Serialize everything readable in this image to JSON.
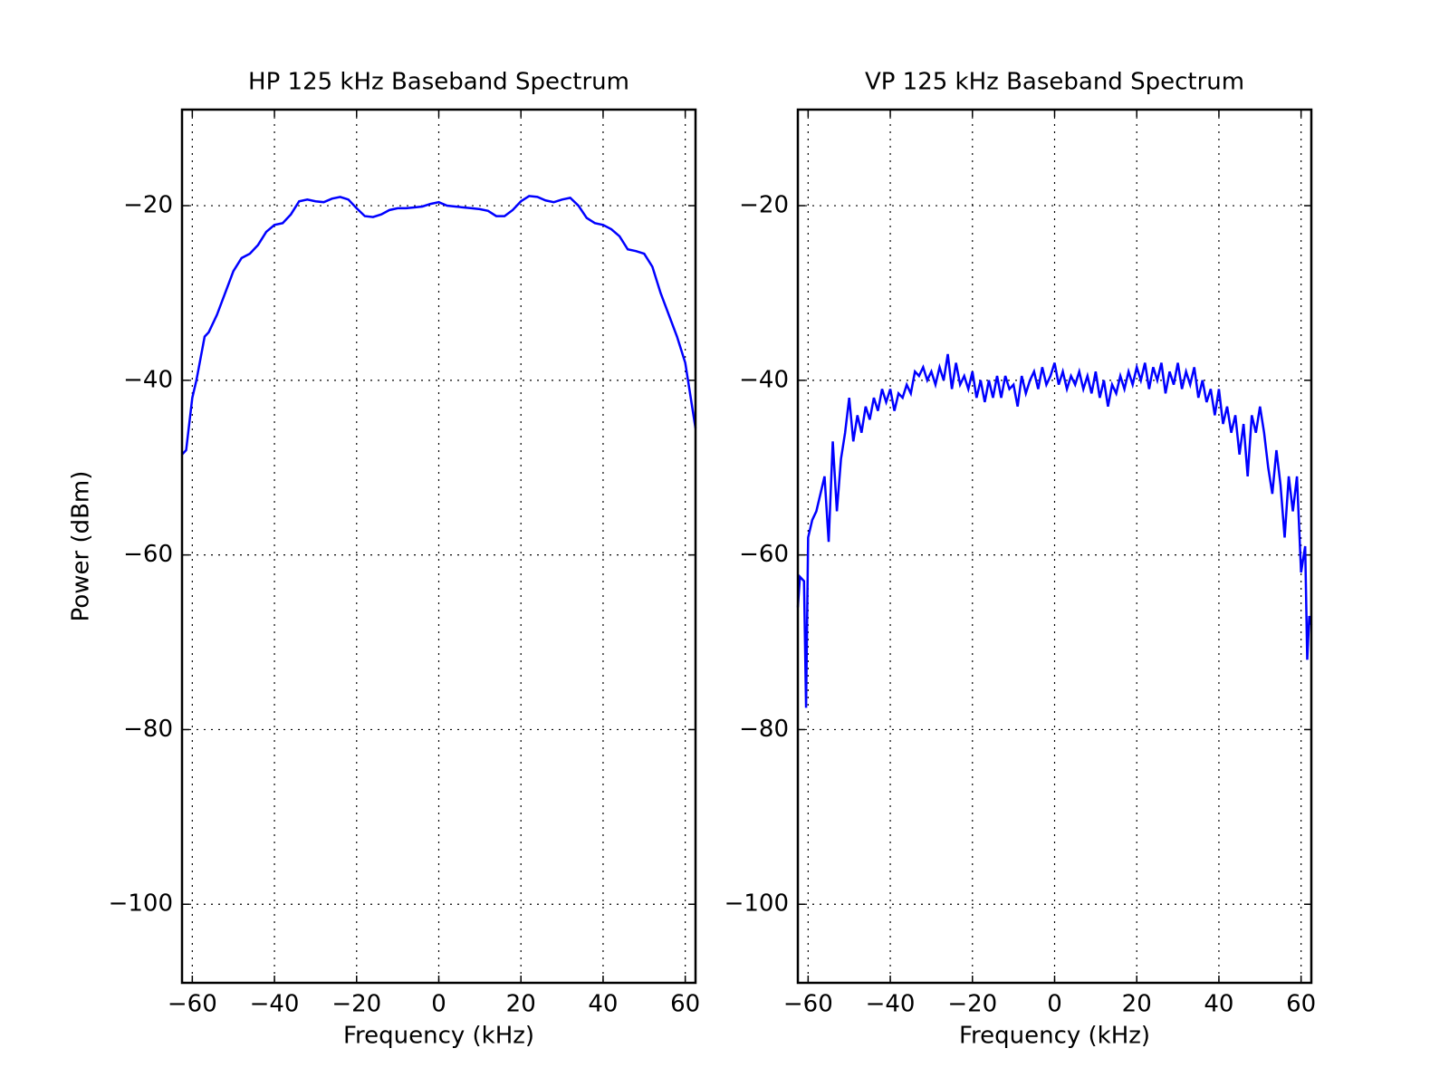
{
  "chart_data": [
    {
      "type": "line",
      "title": "HP 125 kHz Baseband Spectrum",
      "xlabel": "Frequency (kHz)",
      "ylabel": "Power (dBm)",
      "x": [
        -62.5,
        -61.5,
        -60,
        -59,
        -57,
        -56,
        -54,
        -52,
        -50,
        -48,
        -46,
        -44,
        -42,
        -40,
        -38,
        -36,
        -34,
        -32,
        -30,
        -28,
        -26,
        -24,
        -22,
        -20,
        -18,
        -16,
        -14,
        -12,
        -10,
        -8,
        -6,
        -4,
        -2,
        0,
        2,
        4,
        6,
        8,
        10,
        12,
        14,
        16,
        18,
        20,
        22,
        24,
        26,
        28,
        30,
        32,
        34,
        36,
        38,
        40,
        42,
        44,
        46,
        48,
        50,
        52,
        54,
        56,
        58,
        60,
        61,
        62.5
      ],
      "series": [
        {
          "color": "#0000ff",
          "values": [
            -48.5,
            -48,
            -42,
            -40,
            -35,
            -34.5,
            -32.5,
            -30,
            -27.5,
            -26,
            -25.5,
            -24.5,
            -23,
            -22.2,
            -22,
            -21,
            -19.5,
            -19.3,
            -19.5,
            -19.6,
            -19.2,
            -19,
            -19.3,
            -20.3,
            -21.2,
            -21.3,
            -21,
            -20.5,
            -20.3,
            -20.3,
            -20.2,
            -20.1,
            -19.8,
            -19.6,
            -20,
            -20.1,
            -20.2,
            -20.3,
            -20.4,
            -20.6,
            -21.2,
            -21.2,
            -20.5,
            -19.5,
            -18.9,
            -19,
            -19.4,
            -19.6,
            -19.3,
            -19.1,
            -20,
            -21.4,
            -22,
            -22.2,
            -22.7,
            -23.5,
            -25,
            -25.2,
            -25.5,
            -27,
            -30,
            -32.5,
            -35,
            -38,
            -41,
            -45.5
          ]
        }
      ],
      "xlim": [
        -62.5,
        62.5
      ],
      "ylim": [
        -109,
        -9
      ],
      "xticks": [
        {
          "value": -60,
          "label": "−60"
        },
        {
          "value": -40,
          "label": "−40"
        },
        {
          "value": -20,
          "label": "−20"
        },
        0,
        20,
        40,
        60
      ],
      "yticks": [
        {
          "value": -100,
          "label": "−100"
        },
        {
          "value": -80,
          "label": "−80"
        },
        {
          "value": -60,
          "label": "−60"
        },
        {
          "value": -40,
          "label": "−40"
        },
        {
          "value": -20,
          "label": "−20"
        }
      ],
      "grid": true
    },
    {
      "type": "line",
      "title": "VP 125 kHz Baseband Spectrum",
      "xlabel": "Frequency (kHz)",
      "x": [
        -62.5,
        -62,
        -61,
        -60.5,
        -60,
        -59,
        -58,
        -57,
        -56,
        -55,
        -54,
        -53,
        -52,
        -51,
        -50,
        -49,
        -48,
        -47,
        -46,
        -45,
        -44,
        -43,
        -42,
        -41,
        -40,
        -39,
        -38,
        -37,
        -36,
        -35,
        -34,
        -33,
        -32,
        -31,
        -30,
        -29,
        -28,
        -27,
        -26,
        -25,
        -24,
        -23,
        -22,
        -21,
        -20,
        -19,
        -18,
        -17,
        -16,
        -15,
        -14,
        -13,
        -12,
        -11,
        -10,
        -9,
        -8,
        -7,
        -6,
        -5,
        -4,
        -3,
        -2,
        -1,
        0,
        1,
        2,
        3,
        4,
        5,
        6,
        7,
        8,
        9,
        10,
        11,
        12,
        13,
        14,
        15,
        16,
        17,
        18,
        19,
        20,
        21,
        22,
        23,
        24,
        25,
        26,
        27,
        28,
        29,
        30,
        31,
        32,
        33,
        34,
        35,
        36,
        37,
        38,
        39,
        40,
        41,
        42,
        43,
        44,
        45,
        46,
        47,
        48,
        49,
        50,
        51,
        52,
        53,
        54,
        55,
        56,
        57,
        58,
        59,
        60,
        61,
        61.5,
        62,
        62.5
      ],
      "series": [
        {
          "color": "#0000ff",
          "values": [
            -66,
            -62.5,
            -63,
            -77.5,
            -58,
            -56,
            -55,
            -53,
            -51,
            -58.5,
            -47,
            -55,
            -49,
            -46,
            -42,
            -47,
            -44,
            -46,
            -43,
            -44.5,
            -42,
            -43.5,
            -41,
            -42.5,
            -41,
            -43.5,
            -41.5,
            -42,
            -40.5,
            -41.5,
            -39,
            -39.5,
            -38.5,
            -40,
            -39,
            -40.5,
            -38.5,
            -40,
            -37,
            -41,
            -38,
            -40.5,
            -39.5,
            -41,
            -39,
            -42,
            -40,
            -42.5,
            -40,
            -42,
            -39.5,
            -42,
            -39.5,
            -41,
            -40.5,
            -43,
            -39.5,
            -41.5,
            -40,
            -39,
            -41,
            -38.5,
            -40.5,
            -39.5,
            -38,
            -40.5,
            -39,
            -41,
            -39.5,
            -40.5,
            -39,
            -41,
            -39.5,
            -41.5,
            -39,
            -42,
            -40,
            -43,
            -40.5,
            -41.5,
            -39.5,
            -41,
            -39,
            -40.5,
            -38.5,
            -40,
            -38,
            -41,
            -38.5,
            -40,
            -38,
            -41.5,
            -39,
            -40.5,
            -38,
            -41,
            -39,
            -40.5,
            -38.5,
            -42,
            -40,
            -42.5,
            -41,
            -44,
            -41,
            -45,
            -43,
            -46,
            -44,
            -48.5,
            -45,
            -51,
            -44,
            -46,
            -43,
            -46,
            -50,
            -53,
            -48,
            -52,
            -58,
            -51,
            -55,
            -51,
            -62,
            -59,
            -72,
            -67,
            -68
          ]
        }
      ],
      "xlim": [
        -62.5,
        62.5
      ],
      "ylim": [
        -109,
        -9
      ],
      "xticks": [
        {
          "value": -60,
          "label": "−60"
        },
        {
          "value": -40,
          "label": "−40"
        },
        {
          "value": -20,
          "label": "−20"
        },
        0,
        20,
        40,
        60
      ],
      "yticks": [
        {
          "value": -100,
          "label": "−100"
        },
        {
          "value": -80,
          "label": "−80"
        },
        {
          "value": -60,
          "label": "−60"
        },
        {
          "value": -40,
          "label": "−40"
        },
        {
          "value": -20,
          "label": "−20"
        }
      ],
      "grid": true
    }
  ]
}
